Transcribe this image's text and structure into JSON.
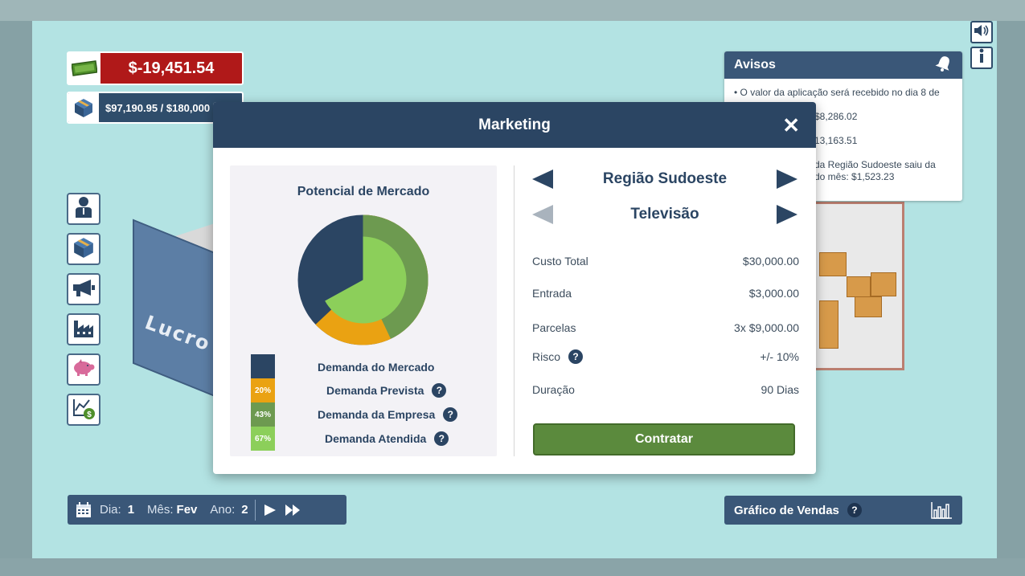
{
  "finance": {
    "balance": "$-19,451.54",
    "stock": "$97,190.95 / $180,000"
  },
  "scenery": {
    "building_text": "Lucro S"
  },
  "avisos": {
    "title": "Avisos",
    "items": [
      "• O valor da aplicação será recebido no dia 8 de",
      "$8,286.02",
      "13,163.51",
      "da Região Sudoeste saiu da",
      "do mês: $1,523.23"
    ]
  },
  "modal": {
    "title": "Marketing",
    "close": "✕",
    "left": {
      "title": "Potencial de Mercado",
      "legend": [
        {
          "badge": "",
          "label": "Demanda do Mercado",
          "color": "#2b4563",
          "help": false
        },
        {
          "badge": "20%",
          "label": "Demanda Prevista",
          "color": "#eaa212",
          "help": true
        },
        {
          "badge": "43%",
          "label": "Demanda da Empresa",
          "color": "#6d9a50",
          "help": true
        },
        {
          "badge": "67%",
          "label": "Demanda Atendida",
          "color": "#8ccf5a",
          "help": true
        }
      ]
    },
    "region": "Região Sudoeste",
    "media": "Televisão",
    "details": {
      "custo_total_label": "Custo Total",
      "custo_total_value": "$30,000.00",
      "entrada_label": "Entrada",
      "entrada_value": "$3,000.00",
      "parcelas_label": "Parcelas",
      "parcelas_value": "3x $9,000.00",
      "risco_label": "Risco",
      "risco_value": "+/- 10%",
      "duracao_label": "Duração",
      "duracao_value": "90 Dias"
    },
    "hire_button": "Contratar",
    "help_symbol": "?"
  },
  "date_bar": {
    "dia_label": "Dia:",
    "dia_value": "1",
    "mes_label": "Mês:",
    "mes_value": "Fev",
    "ano_label": "Ano:",
    "ano_value": "2"
  },
  "sales_bar": {
    "label": "Gráfico de Vendas"
  },
  "chart_data": {
    "type": "pie",
    "title": "Potencial de Mercado",
    "rings": [
      {
        "name": "Demanda do Mercado",
        "ring": "outer",
        "percent": 100,
        "color": "#2b4563"
      },
      {
        "name": "Demanda Prevista",
        "ring": "outer",
        "percent": 20,
        "color": "#eaa212"
      },
      {
        "name": "Demanda da Empresa",
        "ring": "outer",
        "percent": 43,
        "color": "#6d9a50"
      },
      {
        "name": "Demanda Atendida",
        "ring": "inner",
        "percent": 67,
        "color": "#8ccf5a"
      }
    ]
  },
  "colors": {
    "primary": "#2b4563",
    "balance_negative": "#b01919",
    "button_green": "#5b8a3d",
    "background": "#b3e3e3"
  }
}
